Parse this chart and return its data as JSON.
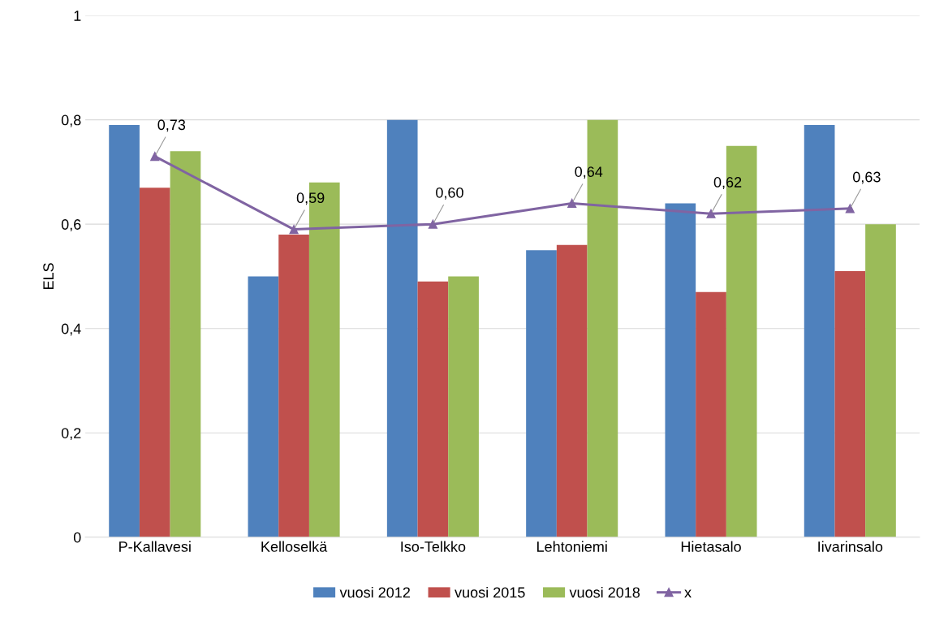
{
  "chart_data": {
    "type": "bar",
    "ylabel": "ELS",
    "categories": [
      "P-Kallavesi",
      "Kelloselkä",
      "Iso-Telkko",
      "Lehtoniemi",
      "Hietasalo",
      "Iivarinsalo"
    ],
    "series": [
      {
        "name": "vuosi 2012",
        "color": "#4f81bd",
        "values": [
          0.79,
          0.5,
          0.8,
          0.55,
          0.64,
          0.79
        ]
      },
      {
        "name": "vuosi 2015",
        "color": "#c0504d",
        "values": [
          0.67,
          0.58,
          0.49,
          0.56,
          0.47,
          0.51
        ]
      },
      {
        "name": "vuosi 2018",
        "color": "#9bbb59",
        "values": [
          0.74,
          0.68,
          0.5,
          0.8,
          0.75,
          0.6
        ]
      },
      {
        "name": "x",
        "type": "line",
        "color": "#8064a2",
        "marker": "triangle",
        "values": [
          0.73,
          0.59,
          0.6,
          0.64,
          0.62,
          0.63
        ],
        "value_labels": [
          "0,73",
          "0,59",
          "0,60",
          "0,64",
          "0,62",
          "0,63"
        ]
      }
    ],
    "ylim": [
      0,
      1
    ],
    "yticks": [
      0,
      {
        "value": 0.2,
        "label": "0,2"
      },
      {
        "value": 0.4,
        "label": "0,4"
      },
      {
        "value": 0.6,
        "label": "0,6"
      },
      {
        "value": 0.8,
        "label": "0,8"
      },
      1
    ],
    "grid": "y",
    "legend": "bottom"
  }
}
